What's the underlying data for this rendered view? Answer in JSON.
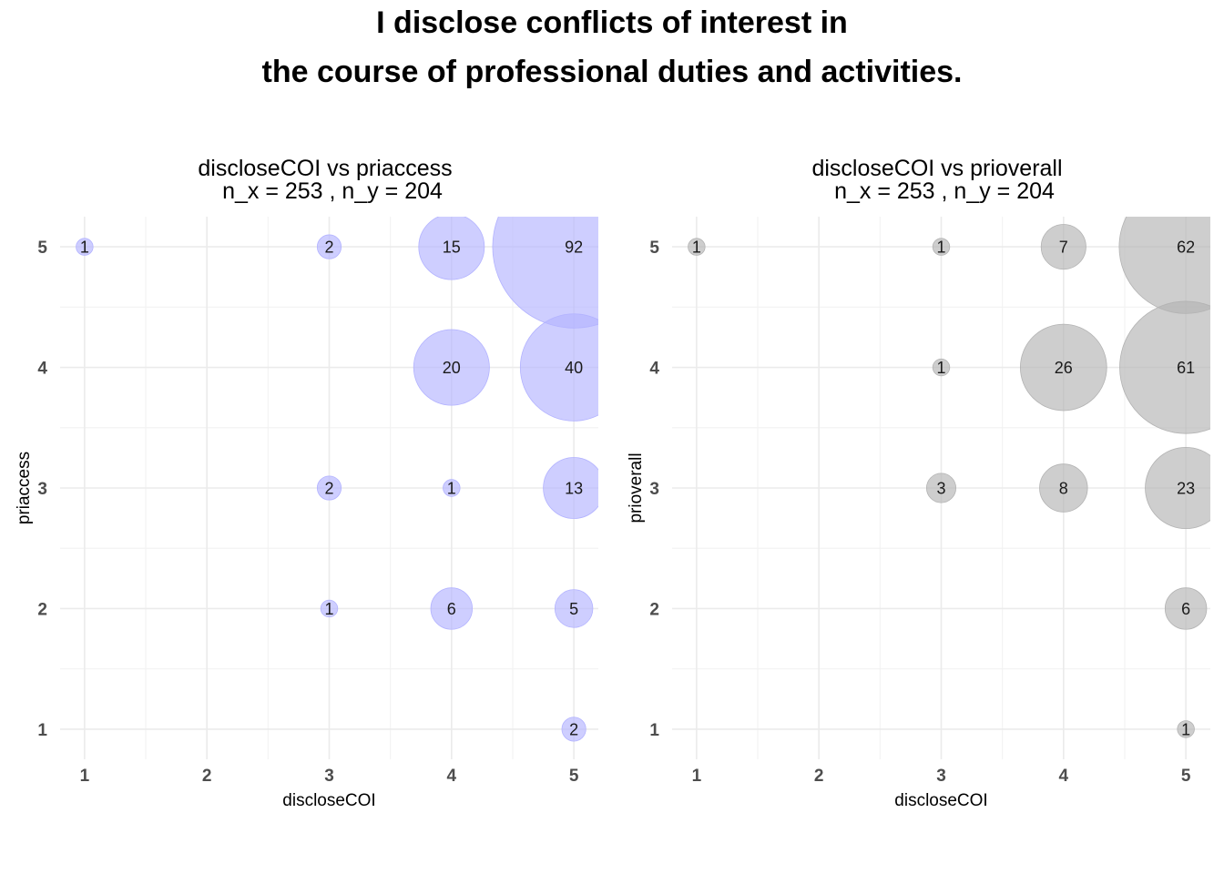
{
  "title": {
    "line1": "I disclose conflicts of interest in",
    "line2": "the course of professional duties and activities."
  },
  "chart_data": [
    {
      "type": "scatter",
      "title": "discloseCOI vs priaccess",
      "subtitle": "n_x = 253 , n_y = 204",
      "xlabel": "discloseCOI",
      "ylabel": "priaccess",
      "xticks": [
        1,
        2,
        3,
        4,
        5
      ],
      "yticks": [
        1,
        2,
        3,
        4,
        5
      ],
      "xlim": [
        0.8,
        5.2
      ],
      "ylim": [
        0.75,
        5.25
      ],
      "grid": true,
      "bubble_color": "#b3b3ff",
      "points": [
        {
          "x": 1,
          "y": 5,
          "count": 1
        },
        {
          "x": 3,
          "y": 5,
          "count": 2
        },
        {
          "x": 4,
          "y": 5,
          "count": 15
        },
        {
          "x": 5,
          "y": 5,
          "count": 92
        },
        {
          "x": 4,
          "y": 4,
          "count": 20
        },
        {
          "x": 5,
          "y": 4,
          "count": 40
        },
        {
          "x": 3,
          "y": 3,
          "count": 2
        },
        {
          "x": 4,
          "y": 3,
          "count": 1
        },
        {
          "x": 5,
          "y": 3,
          "count": 13
        },
        {
          "x": 3,
          "y": 2,
          "count": 1
        },
        {
          "x": 4,
          "y": 2,
          "count": 6
        },
        {
          "x": 5,
          "y": 2,
          "count": 5
        },
        {
          "x": 5,
          "y": 1,
          "count": 2
        }
      ]
    },
    {
      "type": "scatter",
      "title": "discloseCOI vs prioverall",
      "subtitle": "n_x = 253 , n_y = 204",
      "xlabel": "discloseCOI",
      "ylabel": "prioverall",
      "xticks": [
        1,
        2,
        3,
        4,
        5
      ],
      "yticks": [
        1,
        2,
        3,
        4,
        5
      ],
      "xlim": [
        0.8,
        5.2
      ],
      "ylim": [
        0.75,
        5.25
      ],
      "grid": true,
      "bubble_color": "#b3b3b3",
      "points": [
        {
          "x": 1,
          "y": 5,
          "count": 1
        },
        {
          "x": 3,
          "y": 5,
          "count": 1
        },
        {
          "x": 4,
          "y": 5,
          "count": 7
        },
        {
          "x": 5,
          "y": 5,
          "count": 62
        },
        {
          "x": 3,
          "y": 4,
          "count": 1
        },
        {
          "x": 4,
          "y": 4,
          "count": 26
        },
        {
          "x": 5,
          "y": 4,
          "count": 61
        },
        {
          "x": 3,
          "y": 3,
          "count": 3
        },
        {
          "x": 4,
          "y": 3,
          "count": 8
        },
        {
          "x": 5,
          "y": 3,
          "count": 23
        },
        {
          "x": 5,
          "y": 2,
          "count": 6
        },
        {
          "x": 5,
          "y": 1,
          "count": 1
        }
      ]
    }
  ]
}
